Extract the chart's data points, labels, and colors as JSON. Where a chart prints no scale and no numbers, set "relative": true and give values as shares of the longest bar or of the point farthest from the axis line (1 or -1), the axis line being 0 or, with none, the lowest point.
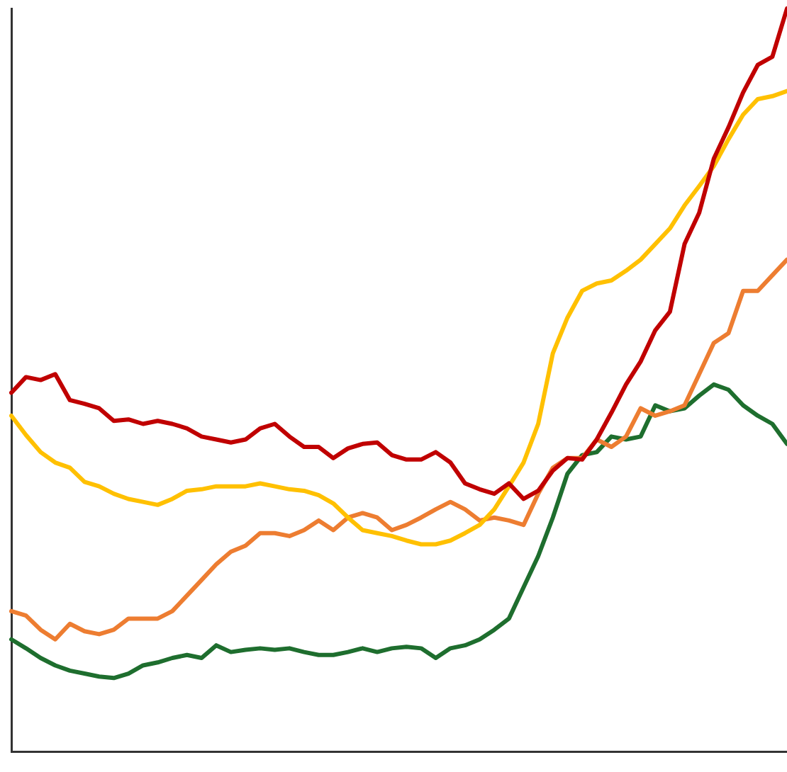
{
  "chart_data": {
    "type": "line",
    "relative": true,
    "legend": false,
    "grid": false,
    "marker": "none",
    "line_style": "solid",
    "categories": [
      null,
      null,
      null,
      null,
      null,
      null,
      null,
      null,
      null,
      null,
      null,
      null,
      null,
      null,
      null,
      null,
      null,
      null,
      null,
      null,
      null,
      null,
      null,
      null,
      null,
      null,
      null,
      null,
      null,
      null,
      null,
      null,
      null,
      null,
      null,
      null,
      null,
      null,
      null,
      null,
      null,
      null,
      null,
      null,
      null,
      null,
      null,
      null,
      null,
      null,
      null,
      null,
      null,
      null
    ],
    "series": [
      {
        "color": "#c00000",
        "values": [
          0.483,
          0.504,
          0.5,
          0.508,
          0.473,
          0.468,
          0.462,
          0.445,
          0.447,
          0.441,
          0.445,
          0.441,
          0.435,
          0.424,
          0.42,
          0.416,
          0.42,
          0.435,
          0.441,
          0.424,
          0.41,
          0.41,
          0.395,
          0.408,
          0.414,
          0.416,
          0.399,
          0.393,
          0.393,
          0.403,
          0.389,
          0.361,
          0.353,
          0.347,
          0.361,
          0.34,
          0.351,
          0.378,
          0.395,
          0.393,
          0.42,
          0.456,
          0.494,
          0.525,
          0.567,
          0.592,
          0.683,
          0.725,
          0.798,
          0.84,
          0.887,
          0.924,
          0.935,
          1
        ]
      },
      {
        "color": "#ffc000",
        "values": [
          0.452,
          0.426,
          0.403,
          0.389,
          0.382,
          0.363,
          0.357,
          0.347,
          0.34,
          0.336,
          0.332,
          0.34,
          0.351,
          0.353,
          0.357,
          0.357,
          0.357,
          0.361,
          0.357,
          0.353,
          0.351,
          0.345,
          0.334,
          0.315,
          0.298,
          0.294,
          0.29,
          0.284,
          0.279,
          0.279,
          0.284,
          0.294,
          0.305,
          0.326,
          0.357,
          0.389,
          0.441,
          0.536,
          0.584,
          0.62,
          0.63,
          0.634,
          0.647,
          0.662,
          0.683,
          0.704,
          0.735,
          0.761,
          0.788,
          0.824,
          0.857,
          0.878,
          0.882,
          0.889
        ]
      },
      {
        "color": "#ed7d31",
        "values": [
          0.189,
          0.183,
          0.164,
          0.151,
          0.172,
          0.162,
          0.158,
          0.164,
          0.179,
          0.179,
          0.179,
          0.189,
          0.21,
          0.231,
          0.252,
          0.269,
          0.277,
          0.294,
          0.294,
          0.29,
          0.298,
          0.311,
          0.298,
          0.315,
          0.321,
          0.315,
          0.298,
          0.305,
          0.315,
          0.326,
          0.336,
          0.326,
          0.311,
          0.315,
          0.311,
          0.305,
          0.347,
          0.382,
          0.395,
          0.395,
          0.42,
          0.41,
          0.424,
          0.462,
          0.452,
          0.458,
          0.466,
          0.508,
          0.55,
          0.563,
          0.62,
          0.62,
          0.641,
          0.662
        ]
      },
      {
        "color": "#1e6e2e",
        "values": [
          0.151,
          0.139,
          0.126,
          0.116,
          0.109,
          0.105,
          0.101,
          0.099,
          0.105,
          0.116,
          0.12,
          0.126,
          0.13,
          0.126,
          0.143,
          0.134,
          0.137,
          0.139,
          0.137,
          0.139,
          0.134,
          0.13,
          0.13,
          0.134,
          0.139,
          0.134,
          0.139,
          0.141,
          0.139,
          0.126,
          0.139,
          0.143,
          0.151,
          0.164,
          0.179,
          0.221,
          0.263,
          0.315,
          0.374,
          0.399,
          0.403,
          0.424,
          0.42,
          0.424,
          0.466,
          0.458,
          0.462,
          0.479,
          0.494,
          0.487,
          0.466,
          0.452,
          0.441,
          0.414
        ]
      }
    ]
  }
}
